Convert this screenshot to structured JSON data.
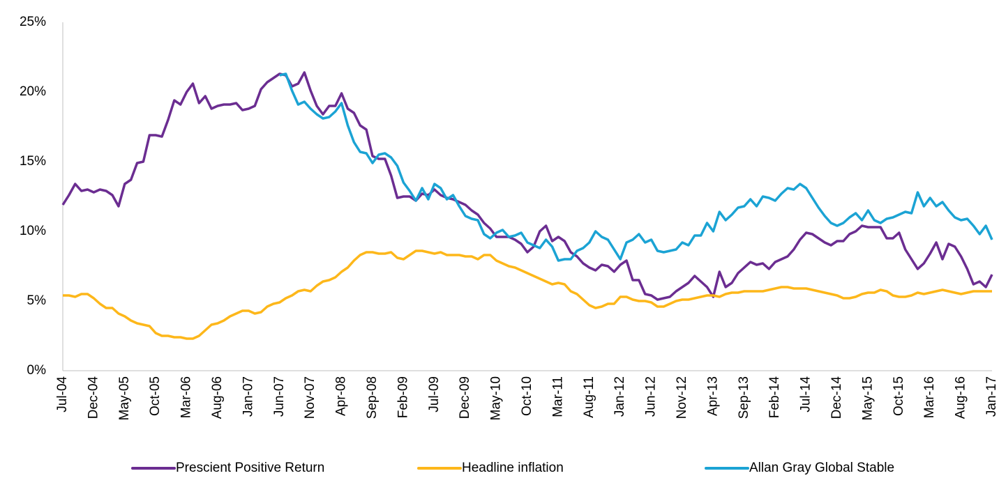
{
  "chart_data": {
    "type": "line",
    "categories": [
      "Jul-04",
      null,
      null,
      null,
      null,
      "Dec-04",
      null,
      null,
      null,
      null,
      "May-05",
      null,
      null,
      null,
      null,
      "Oct-05",
      null,
      null,
      null,
      null,
      "Mar-06",
      null,
      null,
      null,
      null,
      "Aug-06",
      null,
      null,
      null,
      null,
      "Jan-07",
      null,
      null,
      null,
      null,
      "Jun-07",
      null,
      null,
      null,
      null,
      "Nov-07",
      null,
      null,
      null,
      null,
      "Apr-08",
      null,
      null,
      null,
      null,
      "Sep-08",
      null,
      null,
      null,
      null,
      "Feb-09",
      null,
      null,
      null,
      null,
      "Jul-09",
      null,
      null,
      null,
      null,
      "Dec-09",
      null,
      null,
      null,
      null,
      "May-10",
      null,
      null,
      null,
      null,
      "Oct-10",
      null,
      null,
      null,
      null,
      "Mar-11",
      null,
      null,
      null,
      null,
      "Aug-11",
      null,
      null,
      null,
      null,
      "Jan-12",
      null,
      null,
      null,
      null,
      "Jun-12",
      null,
      null,
      null,
      null,
      "Nov-12",
      null,
      null,
      null,
      null,
      "Apr-13",
      null,
      null,
      null,
      null,
      "Sep-13",
      null,
      null,
      null,
      null,
      "Feb-14",
      null,
      null,
      null,
      null,
      "Jul-14",
      null,
      null,
      null,
      null,
      "Dec-14",
      null,
      null,
      null,
      null,
      "May-15",
      null,
      null,
      null,
      null,
      "Oct-15",
      null,
      null,
      null,
      null,
      "Mar-16",
      null,
      null,
      null,
      null,
      "Aug-16",
      null,
      null,
      null,
      null,
      "Jan-17"
    ],
    "series": [
      {
        "name": "Prescient Positive Return",
        "color": "#6b2d91",
        "values": [
          11.9,
          12.6,
          13.4,
          12.9,
          13.0,
          12.8,
          13.0,
          12.9,
          12.6,
          11.8,
          13.4,
          13.7,
          14.9,
          15.0,
          16.9,
          16.9,
          16.8,
          18.0,
          19.4,
          19.1,
          20.0,
          20.6,
          19.2,
          19.7,
          18.8,
          19.0,
          19.1,
          19.1,
          19.2,
          18.7,
          18.8,
          19.0,
          20.2,
          20.7,
          21.0,
          21.3,
          21.2,
          20.4,
          20.6,
          21.4,
          20.1,
          19.0,
          18.4,
          19.0,
          19.0,
          19.9,
          18.8,
          18.5,
          17.6,
          17.3,
          15.4,
          15.2,
          15.2,
          14.0,
          12.4,
          12.5,
          12.5,
          12.2,
          12.7,
          12.6,
          13.0,
          12.6,
          12.4,
          12.3,
          12.1,
          11.9,
          11.5,
          11.2,
          10.6,
          10.2,
          9.6,
          9.6,
          9.6,
          9.4,
          9.1,
          8.5,
          8.9,
          10.0,
          10.4,
          9.3,
          9.6,
          9.3,
          8.5,
          8.2,
          7.7,
          7.4,
          7.2,
          7.6,
          7.5,
          7.1,
          7.6,
          7.9,
          6.5,
          6.5,
          5.5,
          5.4,
          5.1,
          5.2,
          5.3,
          5.7,
          6.0,
          6.3,
          6.8,
          6.4,
          6.0,
          5.3,
          7.1,
          6.0,
          6.3,
          7.0,
          7.4,
          7.8,
          7.6,
          7.7,
          7.3,
          7.8,
          8.0,
          8.2,
          8.7,
          9.4,
          9.9,
          9.8,
          9.5,
          9.2,
          9.0,
          9.3,
          9.3,
          9.8,
          10.0,
          10.4,
          10.3,
          10.3,
          10.3,
          9.5,
          9.5,
          9.9,
          8.7,
          8.0,
          7.3,
          7.7,
          8.4,
          9.2,
          8.0,
          9.1,
          8.9,
          8.2,
          7.3,
          6.2,
          6.4,
          6.0,
          6.9
        ]
      },
      {
        "name": "Headline inflation",
        "color": "#fdb71a",
        "values": [
          5.4,
          5.4,
          5.3,
          5.5,
          5.5,
          5.2,
          4.8,
          4.5,
          4.5,
          4.1,
          3.9,
          3.6,
          3.4,
          3.3,
          3.2,
          2.7,
          2.5,
          2.5,
          2.4,
          2.4,
          2.3,
          2.3,
          2.5,
          2.9,
          3.3,
          3.4,
          3.6,
          3.9,
          4.1,
          4.3,
          4.3,
          4.1,
          4.2,
          4.6,
          4.8,
          4.9,
          5.2,
          5.4,
          5.7,
          5.8,
          5.7,
          6.1,
          6.4,
          6.5,
          6.7,
          7.1,
          7.4,
          7.9,
          8.3,
          8.5,
          8.5,
          8.4,
          8.4,
          8.5,
          8.1,
          8.0,
          8.3,
          8.6,
          8.6,
          8.5,
          8.4,
          8.5,
          8.3,
          8.3,
          8.3,
          8.2,
          8.2,
          8.0,
          8.3,
          8.3,
          7.9,
          7.7,
          7.5,
          7.4,
          7.2,
          7.0,
          6.8,
          6.6,
          6.4,
          6.2,
          6.3,
          6.2,
          5.7,
          5.5,
          5.1,
          4.7,
          4.5,
          4.6,
          4.8,
          4.8,
          5.3,
          5.3,
          5.1,
          5.0,
          5.0,
          4.9,
          4.6,
          4.6,
          4.8,
          5.0,
          5.1,
          5.1,
          5.2,
          5.3,
          5.4,
          5.4,
          5.3,
          5.5,
          5.6,
          5.6,
          5.7,
          5.7,
          5.7,
          5.7,
          5.8,
          5.9,
          6.0,
          6.0,
          5.9,
          5.9,
          5.9,
          5.8,
          5.7,
          5.6,
          5.5,
          5.4,
          5.2,
          5.2,
          5.3,
          5.5,
          5.6,
          5.6,
          5.8,
          5.7,
          5.4,
          5.3,
          5.3,
          5.4,
          5.6,
          5.5,
          5.6,
          5.7,
          5.8,
          5.7,
          5.6,
          5.5,
          5.6,
          5.7,
          5.7,
          5.7,
          5.7
        ]
      },
      {
        "name": "Allan Gray Global Stable",
        "color": "#1ba3d4",
        "values": [
          null,
          null,
          null,
          null,
          null,
          null,
          null,
          null,
          null,
          null,
          null,
          null,
          null,
          null,
          null,
          null,
          null,
          null,
          null,
          null,
          null,
          null,
          null,
          null,
          null,
          null,
          null,
          null,
          null,
          null,
          null,
          null,
          null,
          null,
          null,
          21.2,
          21.3,
          20.1,
          19.1,
          19.3,
          18.8,
          18.4,
          18.1,
          18.2,
          18.6,
          19.2,
          17.6,
          16.4,
          15.7,
          15.6,
          14.9,
          15.5,
          15.6,
          15.3,
          14.7,
          13.5,
          12.9,
          12.2,
          13.1,
          12.3,
          13.4,
          13.1,
          12.3,
          12.6,
          11.8,
          11.1,
          10.9,
          10.8,
          9.8,
          9.5,
          9.9,
          10.1,
          9.6,
          9.7,
          9.9,
          9.2,
          9.0,
          8.8,
          9.4,
          8.9,
          7.9,
          8.0,
          8.0,
          8.6,
          8.8,
          9.2,
          10.0,
          9.6,
          9.4,
          8.7,
          8.0,
          9.2,
          9.4,
          9.8,
          9.2,
          9.4,
          8.6,
          8.5,
          8.6,
          8.7,
          9.2,
          9.0,
          9.7,
          9.7,
          10.6,
          10.0,
          11.4,
          10.8,
          11.2,
          11.7,
          11.8,
          12.3,
          11.8,
          12.5,
          12.4,
          12.2,
          12.7,
          13.1,
          13.0,
          13.4,
          13.1,
          12.4,
          11.7,
          11.1,
          10.6,
          10.4,
          10.6,
          11.0,
          11.3,
          10.8,
          11.5,
          10.8,
          10.6,
          10.9,
          11.0,
          11.2,
          11.4,
          11.3,
          12.8,
          11.8,
          12.4,
          11.8,
          12.1,
          11.5,
          11.0,
          10.8,
          10.9,
          10.4,
          9.8,
          10.4,
          9.4
        ]
      }
    ],
    "ylim": [
      0,
      25
    ],
    "yticks": [
      {
        "value": 0,
        "label": "0%"
      },
      {
        "value": 5,
        "label": "5%"
      },
      {
        "value": 10,
        "label": "10%"
      },
      {
        "value": 15,
        "label": "15%"
      },
      {
        "value": 20,
        "label": "20%"
      },
      {
        "value": 25,
        "label": "25%"
      }
    ],
    "grid": false,
    "legend": "bottom"
  }
}
